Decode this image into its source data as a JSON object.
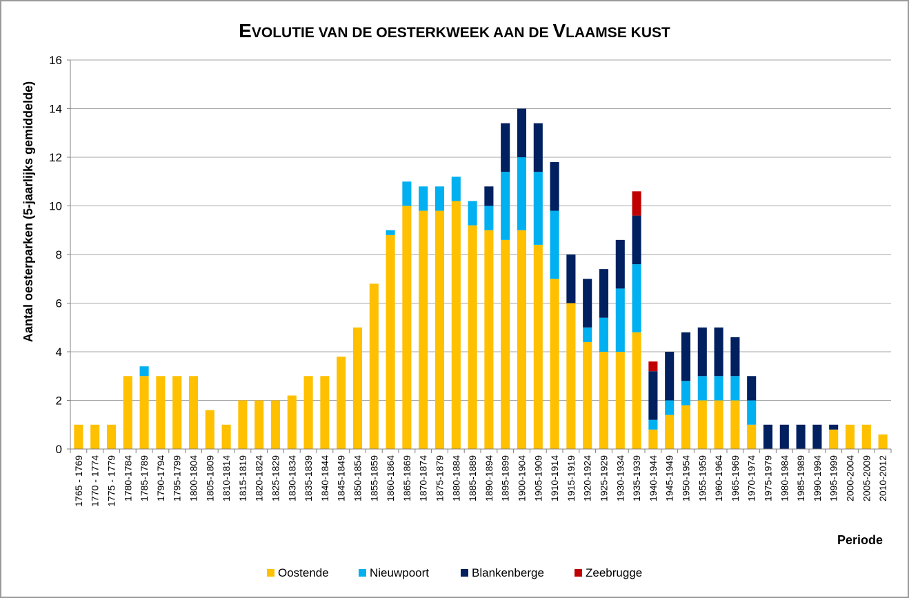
{
  "chart_data": {
    "type": "bar",
    "stacked": true,
    "title": "Evolutie van de oesterkweek aan de Vlaamse kust",
    "xlabel": "Periode",
    "ylabel": "Aantal oesterparken (5-jaarlijks gemiddelde)",
    "ylim": [
      0,
      16
    ],
    "yticks": [
      "0",
      "2",
      "4",
      "6",
      "8",
      "10",
      "12",
      "14",
      "16"
    ],
    "grid": true,
    "legend_position": "bottom",
    "categories": [
      "1765 - 1769",
      "1770 - 1774",
      "1775 - 1779",
      "1780-1784",
      "1785-1789",
      "1790-1794",
      "1795-1799",
      "1800-1804",
      "1805-1809",
      "1810-1814",
      "1815-1819",
      "1820-1824",
      "1825-1829",
      "1830-1834",
      "1835-1839",
      "1840-1844",
      "1845-1849",
      "1850-1854",
      "1855-1859",
      "1860-1864",
      "1865-1869",
      "1870-1874",
      "1875-1879",
      "1880-1884",
      "1885-1889",
      "1890-1894",
      "1895-1899",
      "1900-1904",
      "1905-1909",
      "1910-1914",
      "1915-1919",
      "1920-1924",
      "1925-1929",
      "1930-1934",
      "1935-1939",
      "1940-1944",
      "1945-1949",
      "1950-1954",
      "1955-1959",
      "1960-1964",
      "1965-1969",
      "1970-1974",
      "1975-1979",
      "1980-1984",
      "1985-1989",
      "1990-1994",
      "1995-1999",
      "2000-2004",
      "2005-2009",
      "2010-2012"
    ],
    "series": [
      {
        "name": "Oostende",
        "color": "#FFC000",
        "values": [
          1,
          1,
          1,
          3,
          3,
          3,
          3,
          3,
          1.6,
          1,
          2,
          2,
          2,
          2.2,
          3,
          3,
          3.8,
          5,
          6.8,
          8.8,
          10,
          9.8,
          9.8,
          10.2,
          9.2,
          9,
          8.6,
          9,
          8.4,
          7,
          6,
          4.4,
          4,
          4,
          4.8,
          0.8,
          1.4,
          1.8,
          2,
          2,
          2,
          1,
          0,
          0,
          0,
          0,
          0.8,
          1,
          1,
          0.6
        ]
      },
      {
        "name": "Nieuwpoort",
        "color": "#00B0F0",
        "values": [
          0,
          0,
          0,
          0,
          0.4,
          0,
          0,
          0,
          0,
          0,
          0,
          0,
          0,
          0,
          0,
          0,
          0,
          0,
          0,
          0.2,
          1,
          1,
          1,
          1,
          1,
          1,
          2.8,
          3,
          3,
          2.8,
          0,
          0.6,
          1.4,
          2.6,
          2.8,
          0.4,
          0.6,
          1,
          1,
          1,
          1,
          1,
          0,
          0,
          0,
          0,
          0,
          0,
          0,
          0
        ]
      },
      {
        "name": "Blankenberge",
        "color": "#002060",
        "values": [
          0,
          0,
          0,
          0,
          0,
          0,
          0,
          0,
          0,
          0,
          0,
          0,
          0,
          0,
          0,
          0,
          0,
          0,
          0,
          0,
          0,
          0,
          0,
          0,
          0,
          0.8,
          2,
          2,
          2,
          2,
          2,
          2,
          2,
          2,
          2,
          2,
          2,
          2,
          2,
          2,
          1.6,
          1,
          1,
          1,
          1,
          1,
          0.2,
          0,
          0,
          0
        ]
      },
      {
        "name": "Zeebrugge",
        "color": "#C00000",
        "values": [
          0,
          0,
          0,
          0,
          0,
          0,
          0,
          0,
          0,
          0,
          0,
          0,
          0,
          0,
          0,
          0,
          0,
          0,
          0,
          0,
          0,
          0,
          0,
          0,
          0,
          0,
          0,
          0,
          0,
          0,
          0,
          0,
          0,
          0,
          1,
          0.4,
          0,
          0,
          0,
          0,
          0,
          0,
          0,
          0,
          0,
          0,
          0,
          0,
          0,
          0
        ]
      }
    ]
  }
}
